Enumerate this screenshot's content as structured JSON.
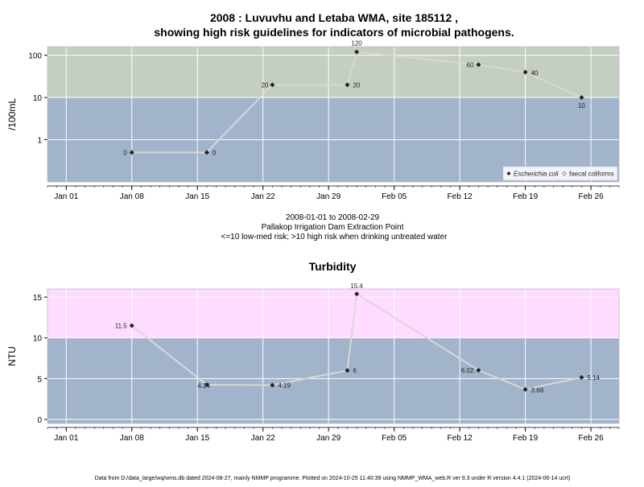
{
  "chart_data": [
    {
      "type": "line",
      "title_line1": "2008 : Luvuvhu and Letaba WMA, site 185112 ,",
      "title_line2": "showing high risk guidelines for indicators of microbial pathogens.",
      "ylabel": "/100mL",
      "yscale": "log",
      "y_ticks": [
        1,
        10,
        100
      ],
      "x_ticks": [
        "Jan 01",
        "Jan 08",
        "Jan 15",
        "Jan 22",
        "Jan 29",
        "Feb 05",
        "Feb 12",
        "Feb 19",
        "Feb 26"
      ],
      "x_range": [
        "2007-12-30",
        "2008-02-29"
      ],
      "y_range": [
        0.1,
        160
      ],
      "zones": [
        {
          "from": 0.1,
          "to": 10,
          "color": "#a2b3cc"
        },
        {
          "from": 10,
          "to": 160,
          "color": "#c4cfc2"
        }
      ],
      "series": [
        {
          "name": "Escherichia coli",
          "x": [
            "2008-01-08",
            "2008-01-16",
            "2008-01-23",
            "2008-01-31",
            "2008-02-01",
            "2008-02-14",
            "2008-02-19",
            "2008-02-25"
          ],
          "values": [
            0.5,
            0.5,
            20,
            20,
            120,
            60,
            40,
            10
          ],
          "labels": [
            "0",
            "0",
            "20",
            "20",
            "120",
            "60",
            "40",
            "10"
          ]
        }
      ],
      "legend": {
        "placement": "bottom-right",
        "items": [
          "Escherichia coli",
          "faecal coliforms"
        ]
      },
      "subtitle_lines": [
        "2008-01-01 to 2008-02-29",
        "Pallakop Irrigation Dam Extraction Point",
        "<=10 low-med risk; >10 high risk when drinking untreated water"
      ]
    },
    {
      "type": "line",
      "title": "Turbidity",
      "ylabel": "NTU",
      "y_ticks": [
        0,
        5,
        10,
        15
      ],
      "x_ticks": [
        "Jan 01",
        "Jan 08",
        "Jan 15",
        "Jan 22",
        "Jan 29",
        "Feb 05",
        "Feb 12",
        "Feb 19",
        "Feb 26"
      ],
      "x_range": [
        "2007-12-30",
        "2008-02-29"
      ],
      "y_range": [
        -0.5,
        16
      ],
      "zones": [
        {
          "from": -0.5,
          "to": 10,
          "color": "#a2b3cc"
        },
        {
          "from": 10,
          "to": 16,
          "color": "#ffdcff"
        }
      ],
      "series": [
        {
          "x": [
            "2008-01-08",
            "2008-01-16",
            "2008-01-23",
            "2008-01-31",
            "2008-02-01",
            "2008-02-14",
            "2008-02-19",
            "2008-02-25"
          ],
          "values": [
            11.5,
            4.24,
            4.19,
            6,
            15.4,
            6.02,
            3.68,
            5.14
          ],
          "labels": [
            "11.5",
            "4.24",
            "4.19",
            "6",
            "15.4",
            "6.02",
            "3.68",
            "5.14"
          ]
        }
      ]
    }
  ],
  "footer": "Data from D:/data_large/wq/wms.db dated 2024-08-27, mainly NMMP programme. Plotted on 2024-10-25 11:40:39 using NMMP_WMA_web.R ver 9.3 under R version 4.4.1 (2024-06-14 ucrt)",
  "colors": {
    "line": "#d8d8d8",
    "point": "#222222",
    "grid": "#ffffff"
  }
}
